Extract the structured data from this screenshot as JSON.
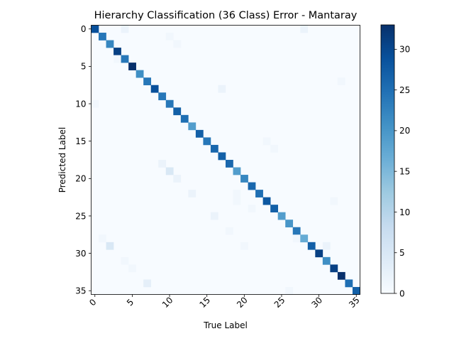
{
  "chart_data": {
    "type": "heatmap",
    "title": "Hierarchy Classification (36 Class) Error - Mantaray",
    "xlabel": "True Label",
    "ylabel": "Predicted Label",
    "n_classes": 36,
    "x_ticks": [
      "0",
      "5",
      "10",
      "15",
      "20",
      "25",
      "30",
      "35"
    ],
    "y_ticks": [
      "0",
      "5",
      "10",
      "15",
      "20",
      "25",
      "30",
      "35"
    ],
    "colorbar": {
      "min": 0,
      "max": 33,
      "ticks": [
        "0",
        "5",
        "10",
        "15",
        "20",
        "25",
        "30"
      ],
      "colormap": "Blues",
      "colormap_stops": [
        "#f7fbff",
        "#deebf7",
        "#c6dbef",
        "#9ecae1",
        "#6baed6",
        "#4292c6",
        "#2171b5",
        "#08519c",
        "#08306b"
      ]
    },
    "diagonal": [
      29,
      24,
      22,
      31,
      24,
      33,
      21,
      24,
      29,
      24,
      24,
      27,
      25,
      19,
      27,
      24,
      26,
      27,
      26,
      19,
      22,
      26,
      25,
      28,
      27,
      19,
      20,
      24,
      17,
      27,
      31,
      21,
      31,
      33,
      25,
      27
    ],
    "off_diagonal": [
      {
        "true": 4,
        "pred": 0,
        "value": 2
      },
      {
        "true": 28,
        "pred": 0,
        "value": 2
      },
      {
        "true": 10,
        "pred": 1,
        "value": 1
      },
      {
        "true": 11,
        "pred": 2,
        "value": 1
      },
      {
        "true": 3,
        "pred": 4,
        "value": 1
      },
      {
        "true": 33,
        "pred": 7,
        "value": 1
      },
      {
        "true": 17,
        "pred": 8,
        "value": 2
      },
      {
        "true": 0,
        "pred": 10,
        "value": 1
      },
      {
        "true": 24,
        "pred": 16,
        "value": 1
      },
      {
        "true": 23,
        "pred": 15,
        "value": 1
      },
      {
        "true": 9,
        "pred": 18,
        "value": 2
      },
      {
        "true": 10,
        "pred": 19,
        "value": 5
      },
      {
        "true": 11,
        "pred": 20,
        "value": 2
      },
      {
        "true": 13,
        "pred": 22,
        "value": 2
      },
      {
        "true": 19,
        "pred": 22,
        "value": 1
      },
      {
        "true": 19,
        "pred": 23,
        "value": 1
      },
      {
        "true": 32,
        "pred": 23,
        "value": 1
      },
      {
        "true": 21,
        "pred": 24,
        "value": 1
      },
      {
        "true": 16,
        "pred": 25,
        "value": 2
      },
      {
        "true": 18,
        "pred": 27,
        "value": 1
      },
      {
        "true": 1,
        "pred": 28,
        "value": 1
      },
      {
        "true": 2,
        "pred": 29,
        "value": 5
      },
      {
        "true": 20,
        "pred": 29,
        "value": 1
      },
      {
        "true": 4,
        "pred": 31,
        "value": 1
      },
      {
        "true": 5,
        "pred": 32,
        "value": 1
      },
      {
        "true": 7,
        "pred": 34,
        "value": 3
      },
      {
        "true": 26,
        "pred": 35,
        "value": 1
      },
      {
        "true": 27,
        "pred": 28,
        "value": 1
      },
      {
        "true": 31,
        "pred": 29,
        "value": 2
      }
    ]
  }
}
